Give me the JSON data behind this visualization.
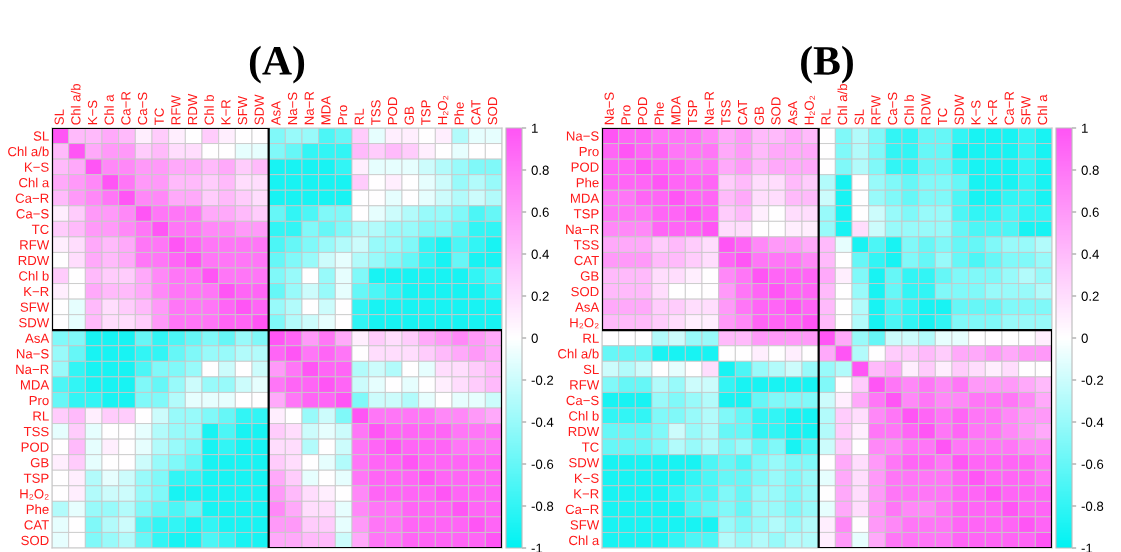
{
  "chart_data": [
    {
      "type": "heatmap",
      "title": "(A)",
      "categories": [
        "SL",
        "Chl a/b",
        "K−S",
        "Chl a",
        "Ca−R",
        "Ca−S",
        "TC",
        "RFW",
        "RDW",
        "Chl b",
        "K−R",
        "SFW",
        "SDW",
        "AsA",
        "Na−S",
        "Na−R",
        "MDA",
        "Pro",
        "RL",
        "TSS",
        "POD",
        "GB",
        "TSP",
        "H₂O₂",
        "Phe",
        "CAT",
        "SOD"
      ],
      "y_categories": [
        "SL",
        "Chl a/b",
        "K−S",
        "Chl a",
        "Ca−R",
        "Ca−S",
        "TC",
        "RFW",
        "RDW",
        "Chl b",
        "K−R",
        "SFW",
        "SDW",
        "AsA",
        "Na−S",
        "Na−R",
        "MDA",
        "Pro",
        "RL",
        "TSS",
        "POD",
        "GB",
        "TSP",
        "H₂O₂",
        "Phe",
        "CAT",
        "SOD"
      ],
      "cells": [
        [
          1,
          0.4,
          0.4,
          0.5,
          0.4,
          0.1,
          0.3,
          0.1,
          0,
          0.3,
          0.1,
          0,
          0,
          -0.5,
          -0.4,
          -0.4,
          -0.7,
          -0.6,
          0.3,
          -0.1,
          0.1,
          0.1,
          0,
          0.1,
          -0.3,
          -0.1,
          -0.1
        ],
        [
          0.4,
          1,
          0.5,
          0.6,
          0.6,
          0.3,
          0.4,
          0.2,
          0.2,
          0,
          0,
          -0.1,
          -0.1,
          -0.5,
          -0.6,
          -0.8,
          -0.8,
          -0.8,
          0.4,
          0.3,
          0.4,
          0.3,
          0.1,
          0,
          -0.1,
          0,
          0
        ],
        [
          0.4,
          0.5,
          1,
          0.7,
          0.7,
          0.6,
          0.6,
          0.5,
          0.5,
          0.4,
          0.5,
          0.3,
          0.4,
          -0.9,
          -0.9,
          -0.9,
          -0.9,
          -0.8,
          0.1,
          -0.1,
          -0.1,
          -0.1,
          -0.2,
          -0.3,
          -0.4,
          -0.5,
          -0.5
        ],
        [
          0.5,
          0.6,
          0.7,
          1,
          0.8,
          0.6,
          0.6,
          0.4,
          0.4,
          0.3,
          0.4,
          0.2,
          0.2,
          -0.9,
          -0.9,
          -0.9,
          -0.9,
          -0.9,
          0.3,
          0,
          0.1,
          0,
          -0.1,
          -0.2,
          -0.4,
          -0.3,
          -0.4
        ],
        [
          0.4,
          0.6,
          0.7,
          0.8,
          1,
          0.7,
          0.7,
          0.5,
          0.5,
          0.3,
          0.4,
          0.3,
          0.2,
          -0.9,
          -0.9,
          -0.9,
          -0.9,
          -0.9,
          0,
          0,
          -0.1,
          0,
          -0.1,
          -0.2,
          -0.3,
          -0.2,
          -0.3
        ],
        [
          0.1,
          0.3,
          0.6,
          0.6,
          0.7,
          1,
          0.8,
          0.8,
          0.8,
          0.5,
          0.5,
          0.4,
          0.3,
          -0.6,
          -0.8,
          -0.7,
          -0.5,
          -0.5,
          0,
          -0.1,
          -0.2,
          -0.3,
          -0.4,
          -0.4,
          -0.5,
          -0.7,
          -0.6
        ],
        [
          0.3,
          0.4,
          0.6,
          0.6,
          0.7,
          0.8,
          1,
          0.8,
          0.8,
          0.7,
          0.7,
          0.6,
          0.6,
          -0.8,
          -0.8,
          -0.5,
          -0.6,
          -0.5,
          -0.3,
          -0.3,
          -0.4,
          -0.4,
          -0.5,
          -0.5,
          -0.6,
          -0.8,
          -0.8
        ],
        [
          0.1,
          0.2,
          0.5,
          0.4,
          0.5,
          0.8,
          0.8,
          1,
          0.9,
          0.8,
          0.8,
          0.8,
          0.8,
          -0.7,
          -0.6,
          -0.5,
          -0.4,
          -0.3,
          -0.2,
          -0.4,
          -0.4,
          -0.5,
          -0.8,
          -0.9,
          -0.7,
          -0.8,
          -0.9
        ],
        [
          0,
          0.2,
          0.5,
          0.4,
          0.5,
          0.8,
          0.8,
          0.9,
          1,
          0.8,
          0.8,
          0.8,
          0.8,
          -0.6,
          -0.5,
          -0.4,
          -0.2,
          -0.1,
          -0.3,
          -0.4,
          -0.5,
          -0.6,
          -0.8,
          -0.9,
          -0.6,
          -0.9,
          -0.9
        ],
        [
          0.3,
          0,
          0.4,
          0.3,
          0.3,
          0.5,
          0.7,
          0.8,
          0.8,
          1,
          0.8,
          0.8,
          0.8,
          -0.5,
          -0.4,
          0,
          -0.4,
          -0.1,
          -0.5,
          -0.9,
          -0.9,
          -0.9,
          -0.9,
          -0.9,
          -0.9,
          -0.8,
          -0.7
        ],
        [
          0.1,
          0,
          0.5,
          0.4,
          0.4,
          0.5,
          0.7,
          0.8,
          0.8,
          0.8,
          1,
          0.9,
          0.9,
          -0.6,
          -0.4,
          -0.2,
          -0.4,
          -0.1,
          -0.6,
          -0.7,
          -0.8,
          -0.9,
          -0.9,
          -0.9,
          -0.9,
          -0.9,
          -0.8
        ],
        [
          0,
          -0.1,
          0.4,
          0.2,
          0.3,
          0.4,
          0.6,
          0.8,
          0.8,
          0.8,
          0.9,
          1,
          0.9,
          -0.4,
          -0.3,
          0,
          -0.2,
          0,
          -0.8,
          -0.9,
          -0.9,
          -0.9,
          -0.9,
          -0.9,
          -0.9,
          -0.9,
          -0.9
        ],
        [
          0,
          -0.1,
          0.4,
          0.2,
          0.2,
          0.3,
          0.6,
          0.8,
          0.8,
          0.8,
          0.9,
          0.9,
          1,
          -0.5,
          -0.3,
          -0.2,
          -0.1,
          0,
          -0.8,
          -0.9,
          -0.9,
          -0.9,
          -0.9,
          -0.9,
          -0.9,
          -0.9,
          -0.9
        ],
        [
          -0.5,
          -0.5,
          -0.9,
          -0.9,
          -0.9,
          -0.6,
          -0.8,
          -0.7,
          -0.6,
          -0.5,
          -0.6,
          -0.4,
          -0.5,
          1,
          0.9,
          0.6,
          0.8,
          0.5,
          0.1,
          0.3,
          0.2,
          0.3,
          0.5,
          0.6,
          0.7,
          0.6,
          0.5
        ],
        [
          -0.4,
          -0.6,
          -0.9,
          -0.9,
          -0.9,
          -0.8,
          -0.8,
          -0.6,
          -0.5,
          -0.4,
          -0.4,
          -0.3,
          -0.3,
          0.9,
          1,
          0.8,
          0.9,
          0.8,
          0,
          0.2,
          0.2,
          0.2,
          0.3,
          0.4,
          0.5,
          0.6,
          0.5
        ],
        [
          -0.4,
          -0.8,
          -0.9,
          -0.9,
          -0.9,
          -0.7,
          -0.5,
          -0.5,
          -0.4,
          0,
          -0.2,
          0,
          -0.2,
          0.6,
          0.8,
          1,
          0.9,
          0.9,
          -0.3,
          -0.2,
          -0.3,
          0,
          -0.1,
          0.2,
          0.2,
          0.3,
          0.4
        ],
        [
          -0.7,
          -0.8,
          -0.9,
          -0.9,
          -0.9,
          -0.5,
          -0.6,
          -0.4,
          -0.2,
          -0.4,
          -0.4,
          -0.2,
          -0.1,
          0.8,
          0.9,
          0.9,
          1,
          0.9,
          -0.2,
          -0.1,
          0,
          -0.1,
          0,
          0.1,
          0.2,
          0.3,
          0.4
        ],
        [
          -0.6,
          -0.8,
          -0.8,
          -0.9,
          -0.9,
          -0.5,
          -0.5,
          -0.3,
          -0.1,
          -0.1,
          -0.1,
          0,
          0,
          0.5,
          0.8,
          0.9,
          0.9,
          1,
          -0.5,
          -0.2,
          -0.2,
          -0.3,
          -0.1,
          0,
          -0.1,
          -0.1,
          -0.2
        ],
        [
          0.3,
          0.4,
          0.1,
          0.3,
          0.3,
          0,
          -0.2,
          -0.4,
          -0.4,
          -0.5,
          -0.6,
          -0.8,
          -0.8,
          0.1,
          0,
          -0.4,
          -0.2,
          -0.5,
          1,
          0.8,
          0.8,
          0.8,
          0.8,
          0.7,
          0.7,
          0.6,
          0.5
        ],
        [
          -0.1,
          0.3,
          -0.1,
          0,
          0,
          -0.1,
          -0.3,
          -0.4,
          -0.4,
          -0.9,
          -0.7,
          -0.9,
          -0.9,
          0.3,
          0.2,
          -0.2,
          -0.1,
          -0.2,
          0.8,
          1,
          0.9,
          0.9,
          0.9,
          0.9,
          0.8,
          0.8,
          0.8
        ],
        [
          0,
          0.4,
          -0.1,
          0.1,
          0,
          -0.1,
          -0.3,
          -0.4,
          -0.5,
          -0.9,
          -0.8,
          -0.9,
          -0.9,
          0.2,
          0.2,
          -0.3,
          0,
          -0.2,
          0.8,
          0.9,
          1,
          0.9,
          0.9,
          0.9,
          0.8,
          0.8,
          0.8
        ],
        [
          0.1,
          0.3,
          -0.1,
          0,
          0,
          -0.2,
          -0.4,
          -0.5,
          -0.6,
          -0.9,
          -0.9,
          -0.9,
          -0.9,
          0.3,
          0.2,
          0,
          -0.1,
          -0.3,
          0.8,
          0.9,
          0.9,
          1,
          0.9,
          0.9,
          0.9,
          0.9,
          0.9
        ],
        [
          0,
          0.1,
          -0.3,
          -0.1,
          -0.2,
          -0.4,
          -0.5,
          -0.8,
          -0.8,
          -0.9,
          -0.9,
          -0.9,
          -0.9,
          0.5,
          0.3,
          -0.1,
          0,
          -0.1,
          0.8,
          0.9,
          0.9,
          0.9,
          1,
          0.9,
          0.9,
          0.9,
          0.9
        ],
        [
          0,
          0.1,
          -0.3,
          -0.2,
          -0.2,
          -0.4,
          -0.5,
          -0.9,
          -0.9,
          -0.9,
          -0.9,
          -0.9,
          -0.9,
          0.6,
          0.4,
          0.2,
          0.1,
          0,
          0.7,
          0.9,
          0.9,
          0.9,
          0.9,
          1,
          0.9,
          0.9,
          0.9
        ],
        [
          -0.3,
          -0.1,
          -0.4,
          -0.4,
          -0.3,
          -0.5,
          -0.6,
          -0.7,
          -0.6,
          -0.9,
          -0.9,
          -0.9,
          -0.9,
          0.7,
          0.5,
          0.2,
          0.2,
          -0.1,
          0.7,
          0.8,
          0.8,
          0.9,
          0.9,
          0.9,
          1,
          0.9,
          0.9
        ],
        [
          -0.1,
          0,
          -0.5,
          -0.3,
          -0.2,
          -0.7,
          -0.8,
          -0.8,
          -0.9,
          -0.8,
          -0.9,
          -0.9,
          -0.9,
          0.6,
          0.6,
          0.3,
          0.3,
          -0.1,
          0.6,
          0.8,
          0.8,
          0.9,
          0.9,
          0.9,
          0.9,
          1,
          0.9
        ],
        [
          -0.1,
          0,
          -0.5,
          -0.4,
          -0.3,
          -0.6,
          -0.8,
          -0.9,
          -0.9,
          -0.7,
          -0.8,
          -0.9,
          -0.9,
          0.5,
          0.5,
          0.4,
          0.4,
          -0.2,
          0.5,
          0.8,
          0.8,
          0.9,
          0.9,
          0.9,
          0.9,
          0.9,
          1
        ]
      ],
      "clim": [
        -1,
        1
      ],
      "cticks": [
        1,
        0.8,
        0.6,
        0.4,
        0.2,
        0,
        -0.2,
        -0.4,
        -0.6,
        -0.8,
        -1
      ]
    },
    {
      "type": "heatmap",
      "title": "(B)",
      "categories": [
        "Na−S",
        "Pro",
        "POD",
        "Phe",
        "MDA",
        "TSP",
        "Na−R",
        "TSS",
        "CAT",
        "GB",
        "SOD",
        "AsA",
        "H₂O₂",
        "RL",
        "Chl a/b",
        "SL",
        "RFW",
        "Ca−S",
        "Chl b",
        "RDW",
        "TC",
        "SDW",
        "K−S",
        "K−R",
        "Ca−R",
        "SFW",
        "Chl a"
      ],
      "y_categories": [
        "Na−S",
        "Pro",
        "POD",
        "Phe",
        "MDA",
        "TSP",
        "Na−R",
        "TSS",
        "CAT",
        "GB",
        "SOD",
        "AsA",
        "H₂O₂",
        "RL",
        "Chl a/b",
        "SL",
        "RFW",
        "Ca−S",
        "Chl b",
        "RDW",
        "TC",
        "SDW",
        "K−S",
        "K−R",
        "Ca−R",
        "SFW",
        "Chl a"
      ],
      "cells": [
        [
          1,
          0.9,
          0.9,
          0.8,
          0.8,
          0.8,
          0.7,
          0.5,
          0.6,
          0.4,
          0.4,
          0.5,
          0.4,
          0,
          -0.5,
          -0.3,
          -0.5,
          -0.8,
          -0.8,
          -0.6,
          -0.6,
          -0.8,
          -0.9,
          -0.9,
          -0.9,
          -0.8,
          -0.9
        ],
        [
          0.9,
          1,
          0.9,
          0.9,
          0.8,
          0.8,
          0.8,
          0.5,
          0.6,
          0.4,
          0.5,
          0.5,
          0.5,
          0,
          -0.5,
          -0.3,
          -0.5,
          -0.8,
          -0.8,
          -0.6,
          -0.6,
          -0.9,
          -0.9,
          -0.9,
          -0.9,
          -0.8,
          -0.9
        ],
        [
          0.9,
          0.9,
          1,
          0.9,
          0.9,
          0.8,
          0.8,
          0.5,
          0.6,
          0.4,
          0.5,
          0.5,
          0.5,
          0,
          -0.5,
          -0.3,
          -0.5,
          -0.8,
          -0.8,
          -0.6,
          -0.6,
          -0.8,
          -0.9,
          -0.9,
          -0.9,
          -0.8,
          -0.9
        ],
        [
          0.9,
          0.9,
          0.9,
          1,
          0.9,
          0.9,
          0.9,
          0.3,
          0.4,
          0.2,
          0.2,
          0.4,
          0.3,
          -0.3,
          -0.9,
          0,
          -0.4,
          -0.5,
          -0.6,
          -0.5,
          -0.5,
          -0.6,
          -0.9,
          -0.9,
          -0.9,
          -0.8,
          -0.9
        ],
        [
          0.8,
          0.8,
          0.9,
          0.9,
          1,
          0.9,
          0.9,
          0.4,
          0.5,
          0.2,
          0.2,
          0.4,
          0.4,
          -0.2,
          -0.9,
          0,
          -0.4,
          -0.5,
          -0.6,
          -0.5,
          -0.5,
          -0.7,
          -0.9,
          -0.9,
          -0.8,
          -0.8,
          -0.9
        ],
        [
          0.8,
          0.8,
          0.8,
          0.9,
          0.9,
          1,
          0.9,
          0.3,
          0.4,
          0.1,
          0,
          0.2,
          0.2,
          -0.4,
          -0.9,
          0,
          -0.2,
          -0.4,
          -0.5,
          -0.4,
          -0.4,
          -0.7,
          -0.8,
          -0.8,
          -0.7,
          -0.8,
          -0.8
        ],
        [
          0.7,
          0.7,
          0.7,
          0.9,
          0.9,
          0.9,
          1,
          0.2,
          0.2,
          0,
          0,
          0.1,
          0.1,
          -0.4,
          -0.9,
          0.2,
          -0.2,
          -0.4,
          -0.4,
          -0.4,
          -0.4,
          -0.6,
          -0.7,
          -0.7,
          -0.7,
          -0.9,
          -0.9
        ],
        [
          0.5,
          0.5,
          0.5,
          0.3,
          0.4,
          0.3,
          0.2,
          1,
          0.9,
          0.7,
          0.6,
          0.6,
          0.5,
          0.4,
          -0.1,
          -0.9,
          -0.7,
          -0.9,
          -0.5,
          -0.6,
          -0.5,
          -0.6,
          -0.6,
          -0.5,
          -0.4,
          -0.4,
          -0.3
        ],
        [
          0.6,
          0.6,
          0.6,
          0.4,
          0.4,
          0.3,
          0.2,
          0.9,
          1,
          0.8,
          0.8,
          0.8,
          0.7,
          0.4,
          0,
          -0.6,
          -0.8,
          -0.9,
          -0.5,
          -0.6,
          -0.4,
          -0.6,
          -0.7,
          -0.6,
          -0.5,
          -0.5,
          -0.4
        ],
        [
          0.4,
          0.4,
          0.4,
          0.2,
          0.2,
          0.1,
          0,
          0.7,
          0.8,
          1,
          0.9,
          0.9,
          0.9,
          0.5,
          0.1,
          -0.5,
          -0.9,
          -0.6,
          -0.8,
          -0.8,
          -0.6,
          -0.5,
          -0.5,
          -0.5,
          -0.4,
          -0.3,
          -0.4
        ],
        [
          0.4,
          0.4,
          0.4,
          0.2,
          0,
          0,
          0,
          0.6,
          0.8,
          0.9,
          1,
          0.9,
          0.9,
          0.4,
          0,
          -0.4,
          -0.9,
          -0.6,
          -0.8,
          -0.8,
          -0.5,
          -0.5,
          -0.5,
          -0.4,
          -0.4,
          -0.4,
          -0.3
        ],
        [
          0.5,
          0.5,
          0.5,
          0.3,
          0.3,
          0.2,
          0.2,
          0.6,
          0.8,
          0.9,
          0.9,
          1,
          0.9,
          0.4,
          0,
          -0.3,
          -0.9,
          -0.7,
          -0.8,
          -0.9,
          -0.9,
          -0.6,
          -0.6,
          -0.6,
          -0.5,
          -0.5,
          -0.5
        ],
        [
          0.4,
          0.4,
          0.4,
          0.3,
          0.2,
          0.1,
          0.1,
          0.6,
          0.7,
          0.9,
          0.9,
          0.9,
          1,
          0.4,
          0,
          -0.3,
          -0.9,
          -0.7,
          -0.8,
          -0.9,
          -0.8,
          -0.5,
          -0.5,
          -0.5,
          -0.4,
          -0.4,
          -0.4
        ],
        [
          0,
          0,
          0,
          -0.3,
          -0.2,
          -0.4,
          -0.4,
          0.4,
          0.4,
          0.6,
          0.6,
          0.6,
          0.6,
          1,
          0.5,
          -0.4,
          -0.6,
          -0.2,
          -0.2,
          -0.3,
          -0.1,
          -0.1,
          0,
          0,
          0,
          0,
          0.1
        ],
        [
          -0.6,
          -0.6,
          -0.6,
          -0.9,
          -0.9,
          -0.9,
          -0.9,
          0,
          0,
          0.1,
          0,
          0.1,
          0,
          0.5,
          1,
          -0.3,
          0,
          0.3,
          0.3,
          0.4,
          0.3,
          0.5,
          0.5,
          0.6,
          0.5,
          0.6,
          0.6
        ],
        [
          -0.2,
          -0.3,
          -0.2,
          0,
          -0.1,
          0,
          0.2,
          -0.9,
          -0.7,
          -0.4,
          -0.3,
          -0.2,
          -0.4,
          -0.4,
          -0.3,
          1,
          0.4,
          0.5,
          0.1,
          0.3,
          0.1,
          0.3,
          0.2,
          0.1,
          0.2,
          0,
          0
        ],
        [
          -0.5,
          -0.6,
          -0.6,
          -0.3,
          -0.4,
          -0.2,
          -0.2,
          -0.8,
          -0.9,
          -0.9,
          -0.9,
          -0.9,
          -0.9,
          -0.5,
          0,
          0.3,
          1,
          0.8,
          0.7,
          0.8,
          0.7,
          0.8,
          0.6,
          0.6,
          0.6,
          0.5,
          0.4
        ],
        [
          -0.9,
          -0.9,
          -0.9,
          -0.4,
          -0.5,
          -0.4,
          -0.3,
          -0.9,
          -0.9,
          -0.6,
          -0.5,
          -0.5,
          -0.5,
          -0.2,
          0.1,
          0.5,
          0.8,
          1,
          0.7,
          0.8,
          0.7,
          0.7,
          0.8,
          0.8,
          0.8,
          0.7,
          0.5
        ],
        [
          -0.8,
          -0.8,
          -0.8,
          -0.5,
          -0.5,
          -0.4,
          -0.3,
          -0.5,
          -0.6,
          -0.8,
          -0.8,
          -0.9,
          -0.9,
          -0.3,
          0.3,
          0.2,
          0.7,
          0.8,
          1,
          0.9,
          0.8,
          0.9,
          0.8,
          0.8,
          0.7,
          0.6,
          0.6
        ],
        [
          -0.6,
          -0.6,
          -0.6,
          -0.5,
          -0.2,
          -0.4,
          -0.3,
          -0.6,
          -0.6,
          -0.8,
          -0.8,
          -0.9,
          -0.9,
          -0.3,
          0.3,
          0.1,
          0.8,
          0.8,
          0.9,
          1,
          0.8,
          0.9,
          0.8,
          0.8,
          0.7,
          0.6,
          0.5
        ],
        [
          -0.6,
          -0.6,
          -0.6,
          -0.5,
          -0.3,
          -0.4,
          -0.3,
          -0.5,
          -0.4,
          -0.6,
          -0.5,
          -0.9,
          -0.7,
          -0.2,
          0.3,
          0,
          0.7,
          0.7,
          0.8,
          0.8,
          1,
          0.8,
          0.8,
          0.8,
          0.8,
          0.7,
          0.7
        ],
        [
          -0.9,
          -0.9,
          -0.9,
          -0.9,
          -0.9,
          -0.9,
          -0.7,
          -0.6,
          -0.7,
          -0.5,
          -0.4,
          -0.5,
          -0.5,
          0,
          0.5,
          0.2,
          0.6,
          0.8,
          0.9,
          0.9,
          0.8,
          1,
          0.9,
          0.9,
          0.9,
          0.9,
          0.8
        ],
        [
          -0.9,
          -0.9,
          -0.9,
          -0.9,
          -0.9,
          -0.8,
          -0.7,
          -0.6,
          -0.6,
          -0.5,
          -0.4,
          -0.5,
          -0.4,
          -0.1,
          0.5,
          0.2,
          0.6,
          0.8,
          0.8,
          0.8,
          0.8,
          0.9,
          1,
          0.9,
          0.9,
          0.9,
          0.8
        ],
        [
          -0.9,
          -0.9,
          -0.9,
          -0.9,
          -0.8,
          -0.7,
          -0.7,
          -0.5,
          -0.6,
          -0.4,
          -0.4,
          -0.5,
          -0.4,
          0,
          0.5,
          0.2,
          0.6,
          0.8,
          0.8,
          0.8,
          0.8,
          0.9,
          0.9,
          1,
          0.9,
          0.9,
          0.9
        ],
        [
          -0.9,
          -0.9,
          -0.9,
          -0.9,
          -0.9,
          -0.7,
          -0.6,
          -0.5,
          -0.6,
          -0.4,
          -0.4,
          -0.5,
          -0.4,
          -0.1,
          0.5,
          0.2,
          0.6,
          0.8,
          0.7,
          0.7,
          0.8,
          0.9,
          0.9,
          0.9,
          1,
          0.9,
          0.9
        ],
        [
          -0.9,
          -0.9,
          -0.9,
          -0.9,
          -0.9,
          -0.9,
          -0.9,
          -0.4,
          -0.5,
          -0.4,
          -0.3,
          -0.4,
          -0.3,
          0.1,
          0.7,
          0,
          0.6,
          0.7,
          0.8,
          0.8,
          0.8,
          0.9,
          0.9,
          0.9,
          0.9,
          1,
          0.9
        ],
        [
          -0.9,
          -0.9,
          -0.9,
          -0.9,
          -0.8,
          -0.7,
          -0.7,
          -0.3,
          -0.4,
          -0.3,
          -0.4,
          -0.3,
          -0.3,
          0.1,
          0.6,
          -0.1,
          0.5,
          0.8,
          0.8,
          0.8,
          0.8,
          0.9,
          0.9,
          0.9,
          0.9,
          0.9,
          1
        ]
      ],
      "clim": [
        -1,
        1
      ],
      "cticks": [
        1,
        0.8,
        0.6,
        0.4,
        0.2,
        0,
        -0.2,
        -0.4,
        -0.6,
        -0.8,
        -1
      ]
    }
  ]
}
